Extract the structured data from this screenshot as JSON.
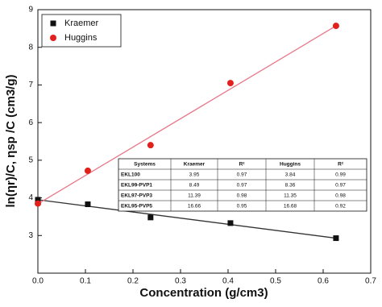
{
  "chart_data": {
    "type": "scatter",
    "xlabel": "Concentration (g/cm3)",
    "ylabel": "ln(ηr)/C, ηsp /C (cm3/g)",
    "xlim": [
      0,
      0.7
    ],
    "xticks": [
      {
        "value": 0,
        "label": "0.0"
      },
      0.1,
      0.2,
      0.3,
      0.4,
      0.5,
      0.6,
      0.7
    ],
    "ylim": [
      2,
      9
    ],
    "yticks": [
      3,
      4,
      5,
      6,
      7,
      8,
      9
    ],
    "legend": "top-left",
    "x": [
      0,
      0.105,
      0.237,
      0.405,
      0.627
    ],
    "fit_x": [
      0,
      0.627
    ],
    "series": [
      {
        "name": "Kraemer",
        "color": "#111111",
        "line_color": "#333333",
        "marker": "square",
        "values": [
          3.95,
          3.83,
          3.48,
          3.33,
          2.93
        ],
        "fit_values": [
          3.95,
          2.93
        ]
      },
      {
        "name": "Huggins",
        "color": "#e3211c",
        "line_color": "#e8788a",
        "marker": "circle",
        "values": [
          3.85,
          4.72,
          5.4,
          7.05,
          8.57
        ],
        "fit_values": [
          3.84,
          8.57
        ]
      }
    ],
    "table": {
      "columns": [
        "Systems",
        "Kraemer",
        "R²",
        "Huggins",
        "R²"
      ],
      "rows": [
        [
          "EKL100",
          3.95,
          0.97,
          3.84,
          0.99
        ],
        [
          "EKL99-PVP1",
          8.49,
          0.97,
          8.36,
          0.97
        ],
        [
          "EKL97-PVP3",
          11.39,
          0.98,
          11.35,
          0.98
        ],
        [
          "EKL95-PVP5",
          16.66,
          0.95,
          16.68,
          0.92
        ]
      ]
    }
  }
}
